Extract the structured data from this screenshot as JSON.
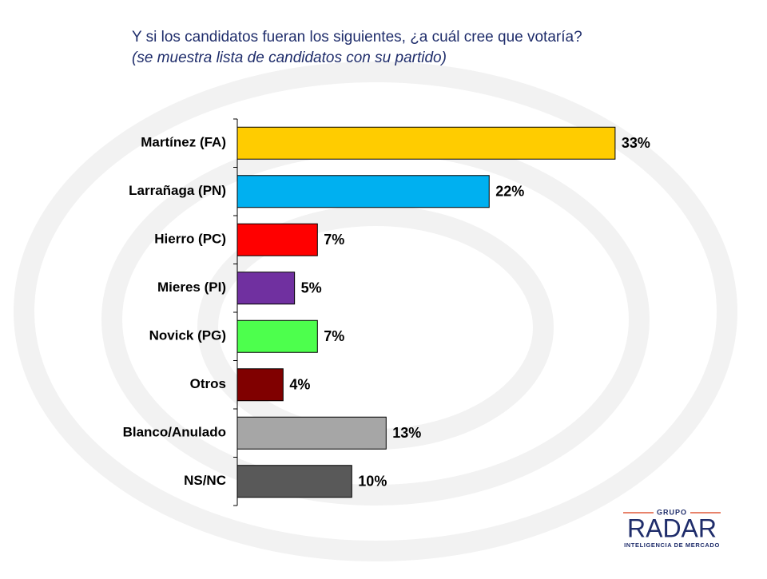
{
  "chart_data": {
    "type": "bar",
    "orientation": "horizontal",
    "title": "Y si los candidatos fueran los siguientes, ¿a cuál cree que votaría?",
    "subtitle": "(se muestra lista de candidatos con su partido)",
    "categories": [
      "Martínez (FA)",
      "Larrañaga (PN)",
      "Hierro (PC)",
      "Mieres (PI)",
      "Novick (PG)",
      "Otros",
      "Blanco/Anulado",
      "NS/NC"
    ],
    "values": [
      33,
      22,
      7,
      5,
      7,
      4,
      13,
      10
    ],
    "value_labels": [
      "33%",
      "22%",
      "7%",
      "5%",
      "7%",
      "4%",
      "13%",
      "10%"
    ],
    "colors": [
      "#ffcc00",
      "#00b0f0",
      "#ff0000",
      "#7030a0",
      "#4dff4d",
      "#800000",
      "#a6a6a6",
      "#595959"
    ]
  },
  "logo": {
    "top": "GRUPO",
    "name": "RADAR",
    "tagline": "INTELIGENCIA DE MERCADO"
  }
}
